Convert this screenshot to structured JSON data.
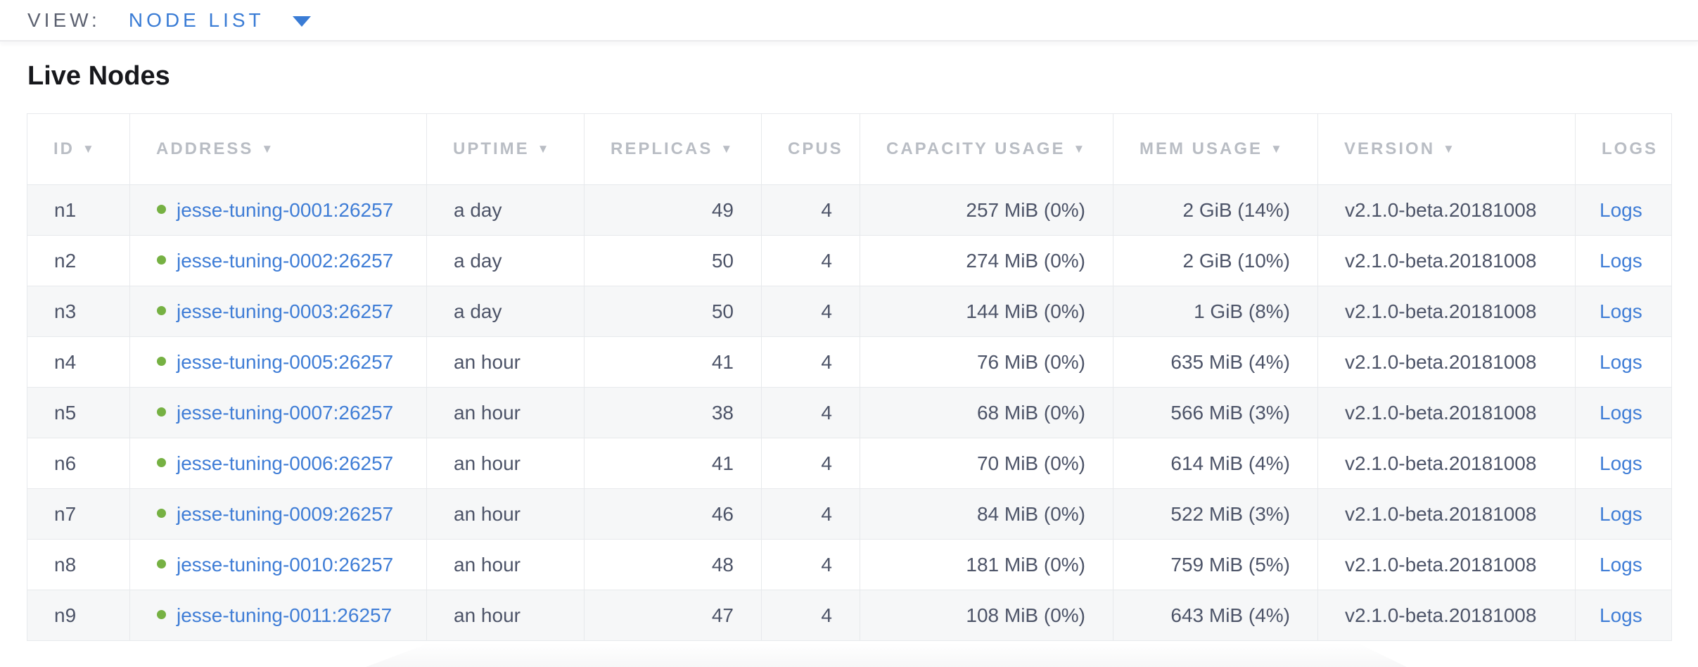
{
  "view_bar": {
    "label": "VIEW:",
    "selected": "NODE LIST"
  },
  "page": {
    "title": "Live Nodes"
  },
  "icons": {
    "sort_desc_glyph": "▼"
  },
  "colors": {
    "link_blue": "#3f7dd6",
    "accent_blue": "#3a7cd5",
    "status_green": "#76b143",
    "header_gray": "#b9bdc4",
    "body_text": "#4d5468",
    "stripe_bg": "#f6f7f8"
  },
  "table": {
    "columns": [
      {
        "key": "id",
        "label": "ID",
        "sorted": true
      },
      {
        "key": "address",
        "label": "ADDRESS",
        "sorted": true
      },
      {
        "key": "uptime",
        "label": "UPTIME",
        "sorted": true
      },
      {
        "key": "replicas",
        "label": "REPLICAS",
        "sorted": true
      },
      {
        "key": "cpus",
        "label": "CPUS",
        "sorted": false
      },
      {
        "key": "capacity",
        "label": "CAPACITY USAGE",
        "sorted": true
      },
      {
        "key": "mem",
        "label": "MEM USAGE",
        "sorted": true
      },
      {
        "key": "version",
        "label": "VERSION",
        "sorted": true
      },
      {
        "key": "logs",
        "label": "LOGS",
        "sorted": false
      }
    ],
    "rows": [
      {
        "id": "n1",
        "address": "jesse-tuning-0001:26257",
        "uptime": "a day",
        "replicas": "49",
        "cpus": "4",
        "capacity": "257 MiB (0%)",
        "mem": "2 GiB (14%)",
        "version": "v2.1.0-beta.20181008",
        "logs": "Logs"
      },
      {
        "id": "n2",
        "address": "jesse-tuning-0002:26257",
        "uptime": "a day",
        "replicas": "50",
        "cpus": "4",
        "capacity": "274 MiB (0%)",
        "mem": "2 GiB (10%)",
        "version": "v2.1.0-beta.20181008",
        "logs": "Logs"
      },
      {
        "id": "n3",
        "address": "jesse-tuning-0003:26257",
        "uptime": "a day",
        "replicas": "50",
        "cpus": "4",
        "capacity": "144 MiB (0%)",
        "mem": "1 GiB (8%)",
        "version": "v2.1.0-beta.20181008",
        "logs": "Logs"
      },
      {
        "id": "n4",
        "address": "jesse-tuning-0005:26257",
        "uptime": "an hour",
        "replicas": "41",
        "cpus": "4",
        "capacity": "76 MiB (0%)",
        "mem": "635 MiB (4%)",
        "version": "v2.1.0-beta.20181008",
        "logs": "Logs"
      },
      {
        "id": "n5",
        "address": "jesse-tuning-0007:26257",
        "uptime": "an hour",
        "replicas": "38",
        "cpus": "4",
        "capacity": "68 MiB (0%)",
        "mem": "566 MiB (3%)",
        "version": "v2.1.0-beta.20181008",
        "logs": "Logs"
      },
      {
        "id": "n6",
        "address": "jesse-tuning-0006:26257",
        "uptime": "an hour",
        "replicas": "41",
        "cpus": "4",
        "capacity": "70 MiB (0%)",
        "mem": "614 MiB (4%)",
        "version": "v2.1.0-beta.20181008",
        "logs": "Logs"
      },
      {
        "id": "n7",
        "address": "jesse-tuning-0009:26257",
        "uptime": "an hour",
        "replicas": "46",
        "cpus": "4",
        "capacity": "84 MiB (0%)",
        "mem": "522 MiB (3%)",
        "version": "v2.1.0-beta.20181008",
        "logs": "Logs"
      },
      {
        "id": "n8",
        "address": "jesse-tuning-0010:26257",
        "uptime": "an hour",
        "replicas": "48",
        "cpus": "4",
        "capacity": "181 MiB (0%)",
        "mem": "759 MiB (5%)",
        "version": "v2.1.0-beta.20181008",
        "logs": "Logs"
      },
      {
        "id": "n9",
        "address": "jesse-tuning-0011:26257",
        "uptime": "an hour",
        "replicas": "47",
        "cpus": "4",
        "capacity": "108 MiB (0%)",
        "mem": "643 MiB (4%)",
        "version": "v2.1.0-beta.20181008",
        "logs": "Logs"
      }
    ]
  }
}
